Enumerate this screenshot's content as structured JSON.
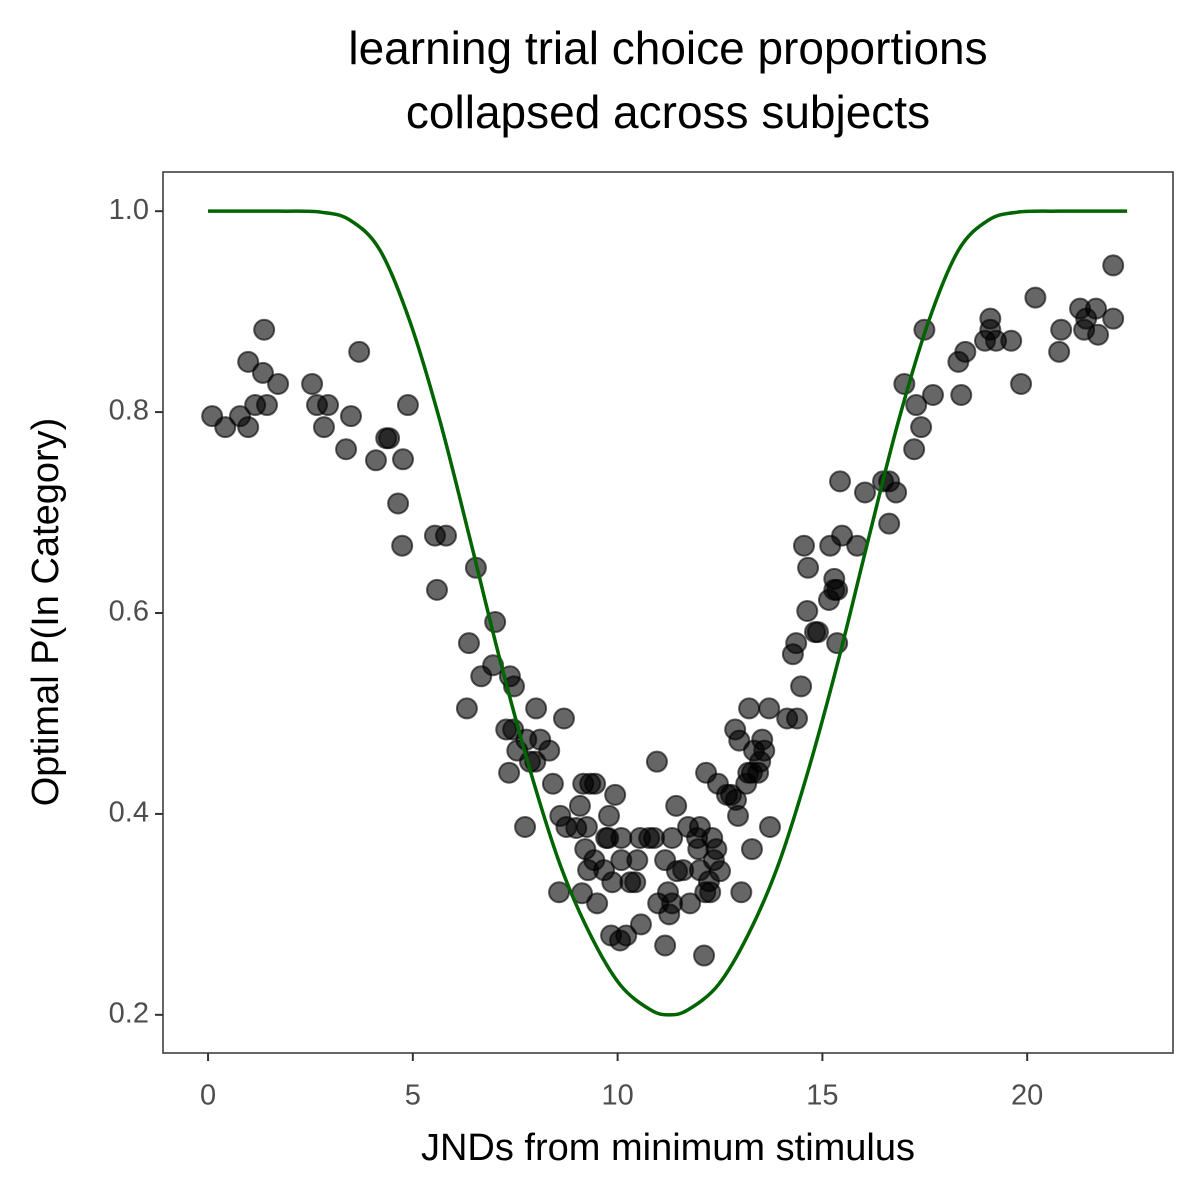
{
  "chart_data": {
    "type": "scatter",
    "title": [
      "learning trial choice proportions",
      "collapsed across subjects"
    ],
    "x_label": "JNDs from minimum stimulus",
    "y_label": "Optimal P(In Category)",
    "xlim": [
      -1.1,
      23.56
    ],
    "xticks": [
      0,
      5,
      10,
      15,
      20
    ],
    "ylim": [
      0.162,
      1.039
    ],
    "yticks": [
      0.2,
      0.4,
      0.6,
      0.8,
      {
        "value": 1,
        "label": "1.0"
      }
    ],
    "grid": false,
    "series": [
      {
        "type": "scatter",
        "color": "#000000",
        "alpha": 0.6,
        "x": [
          0.1,
          0.42,
          0.78,
          0.98,
          0.98,
          1.15,
          1.34,
          1.37,
          1.44,
          1.71,
          2.54,
          2.66,
          2.83,
          2.93,
          3.37,
          3.49,
          3.69,
          4.1,
          4.35,
          4.42,
          4.64,
          4.76,
          4.74,
          4.88,
          5.54,
          5.81,
          5.59,
          6.54,
          6.37,
          6.32,
          6.67,
          7.01,
          6.96,
          7.37,
          7.47,
          7.28,
          7.45,
          7.35,
          7.55,
          7.77,
          7.74,
          7.86,
          8.01,
          8.11,
          8.33,
          7.99,
          8.42,
          8.69,
          8.6,
          8.57,
          8.75,
          9.16,
          9.33,
          9.08,
          8.99,
          9.25,
          9.45,
          9.21,
          9.28,
          9.43,
          9.13,
          9.5,
          9.67,
          9.72,
          9.79,
          9.77,
          9.94,
          9.87,
          9.84,
          10.06,
          10.09,
          10.21,
          10.31,
          10.09,
          10.43,
          10.55,
          10.48,
          10.57,
          10.77,
          10.89,
          10.96,
          10.99,
          11.16,
          11.16,
          11.23,
          11.26,
          11.33,
          11.33,
          11.43,
          11.45,
          11.6,
          11.72,
          11.77,
          11.94,
          12.01,
          12.01,
          11.97,
          12.11,
          12.14,
          12.16,
          12.23,
          12.31,
          12.35,
          12.26,
          12.41,
          12.45,
          12.5,
          12.67,
          12.77,
          12.87,
          12.89,
          12.94,
          12.97,
          13.02,
          13.14,
          13.21,
          13.28,
          13.19,
          13.33,
          13.28,
          13.43,
          13.48,
          13.53,
          13.58,
          13.7,
          13.72,
          14.14,
          14.28,
          14.36,
          14.38,
          14.48,
          14.55,
          14.63,
          14.65,
          14.82,
          14.89,
          15.16,
          15.19,
          15.29,
          15.29,
          15.36,
          15.36,
          15.43,
          15.48,
          15.85,
          16.04,
          16.48,
          16.63,
          16.63,
          16.8,
          17.0,
          17.24,
          17.29,
          17.41,
          17.49,
          17.7,
          18.32,
          18.39,
          18.49,
          18.97,
          19.1,
          19.1,
          19.24,
          19.61,
          19.85,
          20.2,
          20.78,
          20.83,
          21.29,
          21.39,
          21.44,
          21.68,
          21.73,
          22.1,
          22.1
        ],
        "values": [
          0.796,
          0.785,
          0.796,
          0.85,
          0.785,
          0.807,
          0.839,
          0.882,
          0.807,
          0.828,
          0.828,
          0.807,
          0.785,
          0.807,
          0.763,
          0.796,
          0.86,
          0.752,
          0.774,
          0.774,
          0.709,
          0.753,
          0.667,
          0.807,
          0.677,
          0.677,
          0.623,
          0.645,
          0.57,
          0.505,
          0.537,
          0.591,
          0.548,
          0.537,
          0.527,
          0.484,
          0.484,
          0.441,
          0.463,
          0.474,
          0.387,
          0.452,
          0.505,
          0.474,
          0.463,
          0.452,
          0.43,
          0.495,
          0.398,
          0.322,
          0.387,
          0.43,
          0.43,
          0.408,
          0.386,
          0.387,
          0.43,
          0.365,
          0.344,
          0.354,
          0.321,
          0.311,
          0.344,
          0.376,
          0.398,
          0.376,
          0.419,
          0.332,
          0.279,
          0.274,
          0.354,
          0.279,
          0.332,
          0.376,
          0.332,
          0.376,
          0.354,
          0.29,
          0.376,
          0.376,
          0.452,
          0.311,
          0.269,
          0.354,
          0.322,
          0.3,
          0.311,
          0.376,
          0.408,
          0.343,
          0.344,
          0.387,
          0.311,
          0.376,
          0.387,
          0.344,
          0.365,
          0.259,
          0.322,
          0.441,
          0.333,
          0.376,
          0.354,
          0.322,
          0.365,
          0.43,
          0.343,
          0.419,
          0.419,
          0.484,
          0.414,
          0.398,
          0.473,
          0.322,
          0.43,
          0.505,
          0.365,
          0.441,
          0.463,
          0.441,
          0.441,
          0.452,
          0.474,
          0.463,
          0.505,
          0.387,
          0.495,
          0.559,
          0.57,
          0.495,
          0.527,
          0.667,
          0.602,
          0.645,
          0.581,
          0.581,
          0.613,
          0.667,
          0.634,
          0.623,
          0.623,
          0.57,
          0.731,
          0.677,
          0.667,
          0.72,
          0.731,
          0.731,
          0.689,
          0.72,
          0.828,
          0.763,
          0.807,
          0.785,
          0.882,
          0.817,
          0.85,
          0.817,
          0.86,
          0.871,
          0.893,
          0.882,
          0.871,
          0.871,
          0.828,
          0.914,
          0.86,
          0.882,
          0.903,
          0.882,
          0.893,
          0.903,
          0.877,
          0.893,
          0.946
        ]
      },
      {
        "type": "line",
        "color": "#006400",
        "x": [
          0,
          1.76,
          2.76,
          3.47,
          4.2,
          4.93,
          5.67,
          6.4,
          7.13,
          7.86,
          8.6,
          9.33,
          10.06,
          10.8,
          11.26,
          11.72,
          12.46,
          13.19,
          13.92,
          14.66,
          15.39,
          16.12,
          16.85,
          17.59,
          18.32,
          19.05,
          19.76,
          20.76,
          22.44
        ],
        "values": [
          1,
          1,
          0.999,
          0.991,
          0.961,
          0.89,
          0.79,
          0.673,
          0.553,
          0.444,
          0.349,
          0.28,
          0.23,
          0.205,
          0.2,
          0.205,
          0.23,
          0.28,
          0.349,
          0.444,
          0.553,
          0.673,
          0.79,
          0.89,
          0.961,
          0.991,
          0.999,
          1,
          1
        ]
      }
    ]
  }
}
